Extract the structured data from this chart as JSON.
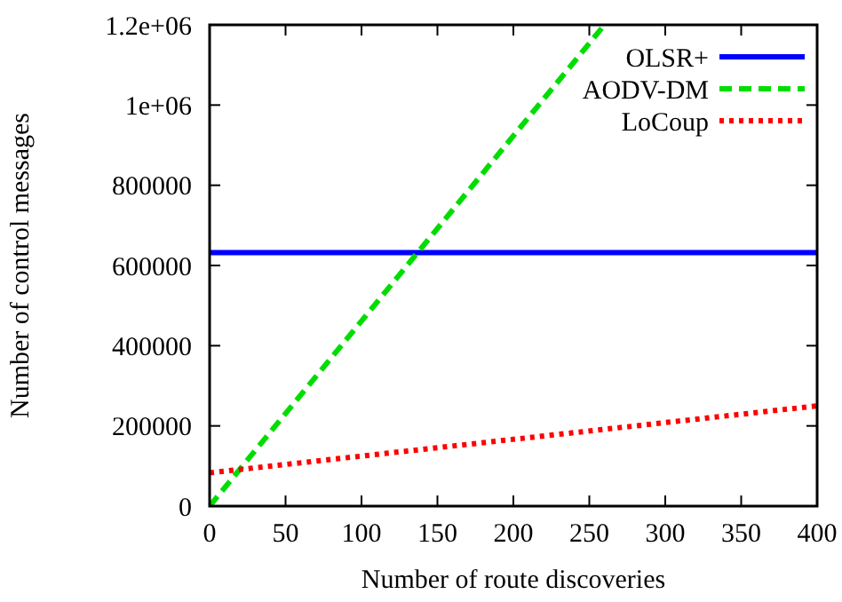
{
  "chart_data": {
    "type": "line",
    "xlabel": "Number of route discoveries",
    "ylabel": "Number of control messages",
    "xlim": [
      0,
      400
    ],
    "xticks": [
      0,
      50,
      100,
      150,
      200,
      250,
      300,
      350,
      400
    ],
    "ylim": [
      0,
      1200000
    ],
    "yticks": [
      0,
      {
        "value": 200000,
        "label": "200000"
      },
      {
        "value": 400000,
        "label": "400000"
      },
      {
        "value": 600000,
        "label": "600000"
      },
      {
        "value": 800000,
        "label": "800000"
      },
      {
        "value": 1000000,
        "label": "1e+06"
      },
      {
        "value": 1200000,
        "label": "1.2e+06"
      }
    ],
    "grid": false,
    "legend": "top right",
    "series": [
      {
        "name": "OLSR+",
        "color": "#0000ff",
        "line_style": "solid",
        "x": [
          0,
          400
        ],
        "values": [
          632000,
          632000
        ]
      },
      {
        "name": "AODV-DM",
        "color": "#00dd00",
        "line_style": "dashed",
        "x": [
          0,
          260
        ],
        "values": [
          0,
          1200000
        ]
      },
      {
        "name": "LoCoup",
        "color": "#ff0000",
        "line_style": "dotted",
        "x": [
          0,
          400
        ],
        "values": [
          83000,
          250000
        ]
      }
    ]
  }
}
